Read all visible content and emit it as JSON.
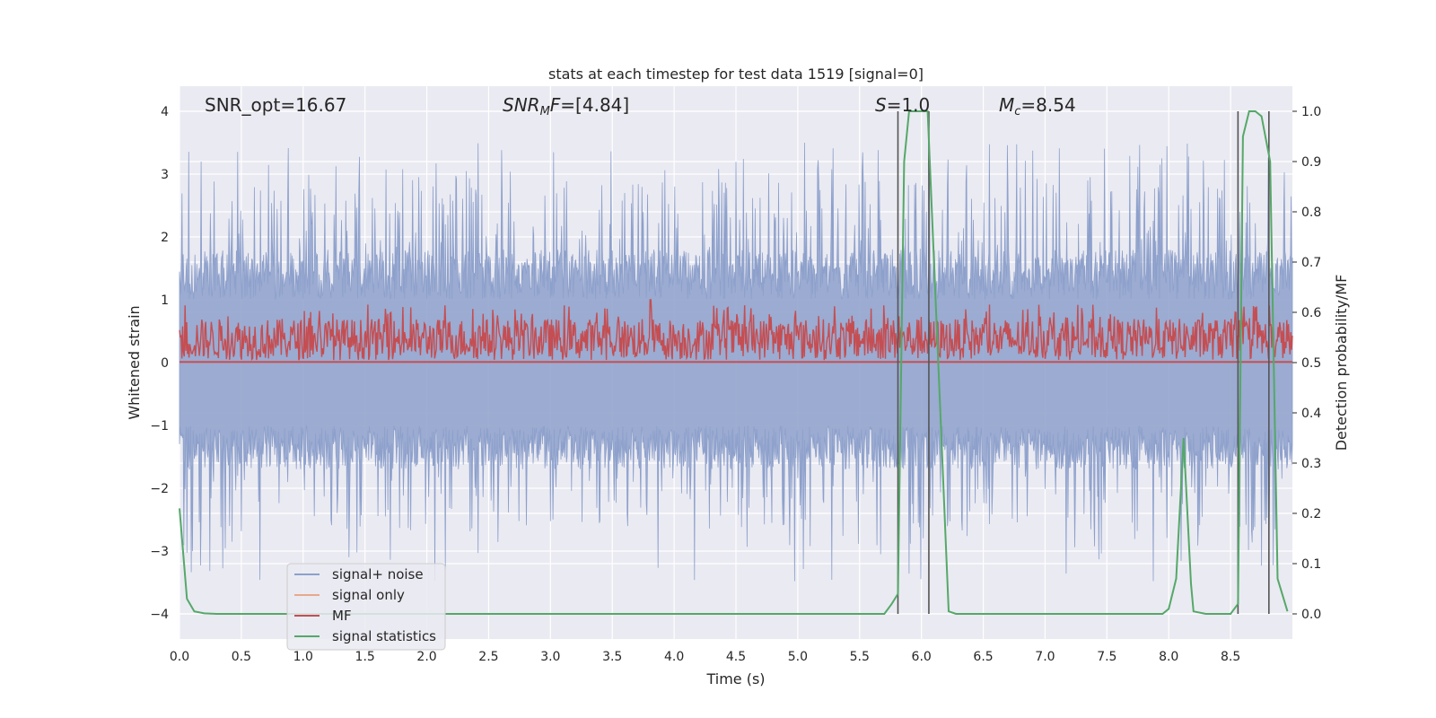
{
  "chart_data": {
    "type": "line",
    "title": "stats at each timestep for test data 1519 [signal=0]",
    "xlabel": "Time (s)",
    "ylabel_left": "Whitened strain",
    "ylabel_right": "Detection probability/MF",
    "xlim": [
      0.0,
      9.0
    ],
    "ylim_left": [
      -4.4,
      4.4
    ],
    "ylim_right": [
      -0.05,
      1.05
    ],
    "x_ticks": [
      "0.0",
      "0.5",
      "1.0",
      "1.5",
      "2.0",
      "2.5",
      "3.0",
      "3.5",
      "4.0",
      "4.5",
      "5.0",
      "5.5",
      "6.0",
      "6.5",
      "7.0",
      "7.5",
      "8.0",
      "8.5"
    ],
    "y_ticks_left": [
      "−4",
      "−3",
      "−2",
      "−1",
      "0",
      "1",
      "2",
      "3",
      "4"
    ],
    "y_ticks_right": [
      "0.0",
      "0.1",
      "0.2",
      "0.3",
      "0.4",
      "0.5",
      "0.6",
      "0.7",
      "0.8",
      "0.9",
      "1.0"
    ],
    "grid": true,
    "legend_position": "lower-left",
    "annotations": {
      "snr_opt": "SNR_opt=16.67",
      "snr_mf_italic": "SNR",
      "snr_mf_sub": "M",
      "snr_mf_rest_italic": "F",
      "snr_mf_value": "=[4.84]",
      "s_italic": "S",
      "s_value": "=1.0",
      "mc_italic": "M",
      "mc_sub": "c",
      "mc_value": "=8.54"
    },
    "series": [
      {
        "name": "signal+ noise",
        "color": "#8da0cb",
        "axis": "left",
        "description_range": [
          -3.5,
          3.6
        ]
      },
      {
        "name": "signal only",
        "color": "#e8a88a",
        "axis": "left"
      },
      {
        "name": "MF",
        "color": "#c44e52",
        "axis": "right",
        "range": [
          0.5,
          0.61
        ]
      },
      {
        "name": "signal statistics",
        "color": "#55a868",
        "axis": "right",
        "x": [
          0.0,
          0.06,
          0.12,
          0.2,
          0.3,
          0.5,
          1.0,
          2.0,
          3.0,
          4.0,
          5.0,
          5.7,
          5.76,
          5.81,
          5.86,
          5.9,
          6.05,
          6.15,
          6.22,
          6.28,
          6.5,
          7.0,
          7.5,
          7.95,
          8.0,
          8.06,
          8.12,
          8.18,
          8.2,
          8.3,
          8.5,
          8.56,
          8.6,
          8.65,
          8.7,
          8.75,
          8.82,
          8.88,
          8.96
        ],
        "values": [
          0.21,
          0.03,
          0.005,
          0.001,
          0.0,
          0.0,
          0.0,
          0.0,
          0.0,
          0.0,
          0.0,
          0.0,
          0.02,
          0.04,
          0.9,
          1.0,
          1.0,
          0.42,
          0.005,
          0.0,
          0.0,
          0.0,
          0.0,
          0.0,
          0.01,
          0.07,
          0.35,
          0.06,
          0.005,
          0.0,
          0.0,
          0.02,
          0.95,
          1.0,
          1.0,
          0.99,
          0.9,
          0.07,
          0.005
        ]
      }
    ],
    "vertical_lines_x": [
      5.81,
      6.06,
      8.56,
      8.81
    ]
  }
}
